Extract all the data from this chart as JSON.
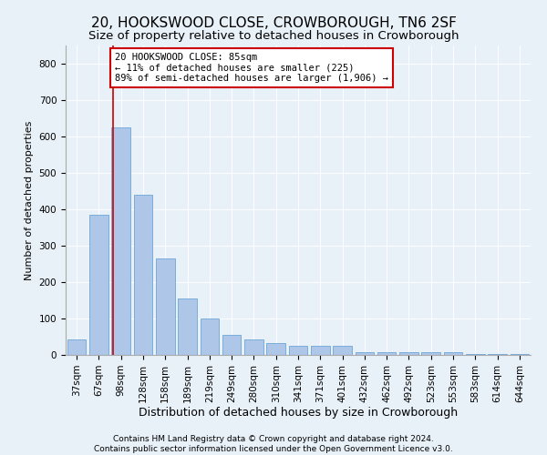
{
  "title": "20, HOOKSWOOD CLOSE, CROWBOROUGH, TN6 2SF",
  "subtitle": "Size of property relative to detached houses in Crowborough",
  "xlabel": "Distribution of detached houses by size in Crowborough",
  "ylabel": "Number of detached properties",
  "categories": [
    "37sqm",
    "67sqm",
    "98sqm",
    "128sqm",
    "158sqm",
    "189sqm",
    "219sqm",
    "249sqm",
    "280sqm",
    "310sqm",
    "341sqm",
    "371sqm",
    "401sqm",
    "432sqm",
    "462sqm",
    "492sqm",
    "523sqm",
    "553sqm",
    "583sqm",
    "614sqm",
    "644sqm"
  ],
  "values": [
    42,
    385,
    625,
    440,
    265,
    155,
    100,
    55,
    42,
    32,
    25,
    25,
    25,
    8,
    8,
    8,
    8,
    8,
    3,
    3,
    3
  ],
  "bar_color": "#aec6e8",
  "bar_edge_color": "#5b9bd5",
  "vline_x_index": 1.65,
  "vline_color": "#cc0000",
  "annotation_text": "20 HOOKSWOOD CLOSE: 85sqm\n← 11% of detached houses are smaller (225)\n89% of semi-detached houses are larger (1,906) →",
  "annotation_box_color": "#ffffff",
  "annotation_box_edge_color": "#cc0000",
  "ylim": [
    0,
    850
  ],
  "yticks": [
    0,
    100,
    200,
    300,
    400,
    500,
    600,
    700,
    800
  ],
  "background_color": "#e8f0f8",
  "plot_background_color": "#e8f0f8",
  "footnote": "Contains HM Land Registry data © Crown copyright and database right 2024.\nContains public sector information licensed under the Open Government Licence v3.0.",
  "title_fontsize": 11,
  "subtitle_fontsize": 9.5,
  "xlabel_fontsize": 9,
  "ylabel_fontsize": 8,
  "tick_fontsize": 7.5,
  "annotation_fontsize": 7.5,
  "footnote_fontsize": 6.5
}
